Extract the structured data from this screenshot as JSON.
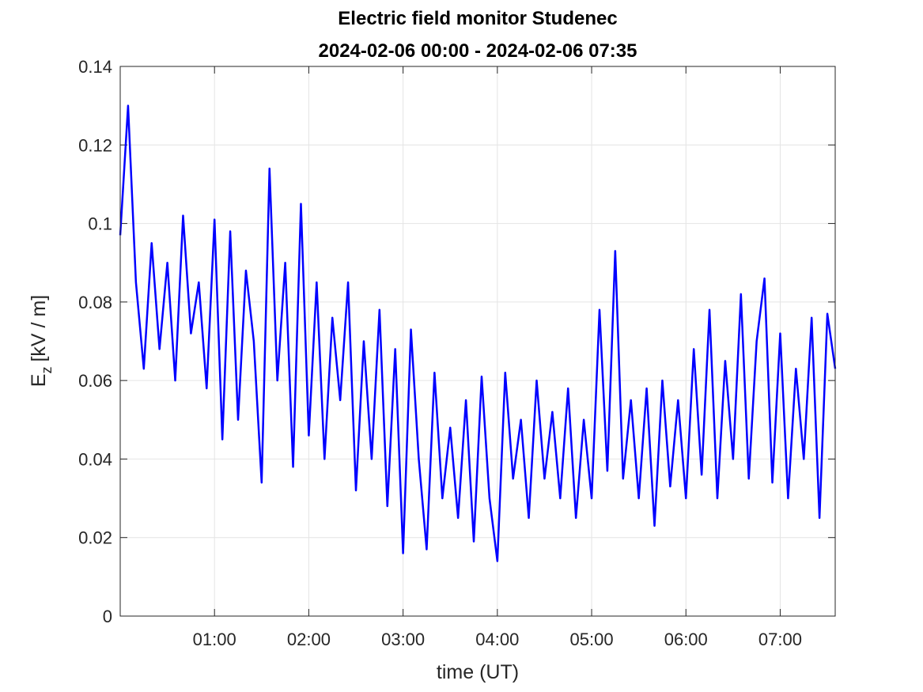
{
  "chart_data": {
    "type": "line",
    "title": [
      "Electric field monitor Studenec",
      "2024-02-06 00:00 - 2024-02-06 07:35"
    ],
    "xlabel": "time (UT)",
    "ylabel": {
      "main": "E",
      "sub": "z",
      "rest": "[kV / m]"
    },
    "x": [
      "00:00",
      "00:05",
      "00:10",
      "00:15",
      "00:20",
      "00:25",
      "00:30",
      "00:35",
      "00:40",
      "00:45",
      "00:50",
      "00:55",
      "01:00",
      "01:05",
      "01:10",
      "01:15",
      "01:20",
      "01:25",
      "01:30",
      "01:35",
      "01:40",
      "01:45",
      "01:50",
      "01:55",
      "02:00",
      "02:05",
      "02:10",
      "02:15",
      "02:20",
      "02:25",
      "02:30",
      "02:35",
      "02:40",
      "02:45",
      "02:50",
      "02:55",
      "03:00",
      "03:05",
      "03:10",
      "03:15",
      "03:20",
      "03:25",
      "03:30",
      "03:35",
      "03:40",
      "03:45",
      "03:50",
      "03:55",
      "04:00",
      "04:05",
      "04:10",
      "04:15",
      "04:20",
      "04:25",
      "04:30",
      "04:35",
      "04:40",
      "04:45",
      "04:50",
      "04:55",
      "05:00",
      "05:05",
      "05:10",
      "05:15",
      "05:20",
      "05:25",
      "05:30",
      "05:35",
      "05:40",
      "05:45",
      "05:50",
      "05:55",
      "06:00",
      "06:05",
      "06:10",
      "06:15",
      "06:20",
      "06:25",
      "06:30",
      "06:35",
      "06:40",
      "06:45",
      "06:50",
      "06:55",
      "07:00",
      "07:05",
      "07:10",
      "07:15",
      "07:20",
      "07:25",
      "07:30",
      "07:35"
    ],
    "series": [
      {
        "color": "#0000ff",
        "values": [
          0.097,
          0.13,
          0.085,
          0.063,
          0.095,
          0.068,
          0.09,
          0.06,
          0.102,
          0.072,
          0.085,
          0.058,
          0.101,
          0.045,
          0.098,
          0.05,
          0.088,
          0.07,
          0.034,
          0.114,
          0.06,
          0.09,
          0.038,
          0.105,
          0.046,
          0.085,
          0.04,
          0.076,
          0.055,
          0.085,
          0.032,
          0.07,
          0.04,
          0.078,
          0.028,
          0.068,
          0.016,
          0.073,
          0.04,
          0.017,
          0.062,
          0.03,
          0.048,
          0.025,
          0.055,
          0.019,
          0.061,
          0.03,
          0.014,
          0.062,
          0.035,
          0.05,
          0.025,
          0.06,
          0.035,
          0.052,
          0.03,
          0.058,
          0.025,
          0.05,
          0.03,
          0.078,
          0.037,
          0.093,
          0.035,
          0.055,
          0.03,
          0.058,
          0.023,
          0.06,
          0.033,
          0.055,
          0.03,
          0.068,
          0.036,
          0.078,
          0.03,
          0.065,
          0.04,
          0.082,
          0.035,
          0.07,
          0.086,
          0.034,
          0.072,
          0.03,
          0.063,
          0.04,
          0.076,
          0.025,
          0.077,
          0.063
        ]
      }
    ],
    "xlim": [
      "00:00",
      "07:35"
    ],
    "xticks": [
      "01:00",
      "02:00",
      "03:00",
      "04:00",
      "05:00",
      "06:00",
      "07:00"
    ],
    "ylim": [
      0,
      0.14
    ],
    "yticks": [
      0,
      0.02,
      0.04,
      0.06,
      0.08,
      0.1,
      0.12,
      0.14
    ],
    "grid": true
  }
}
